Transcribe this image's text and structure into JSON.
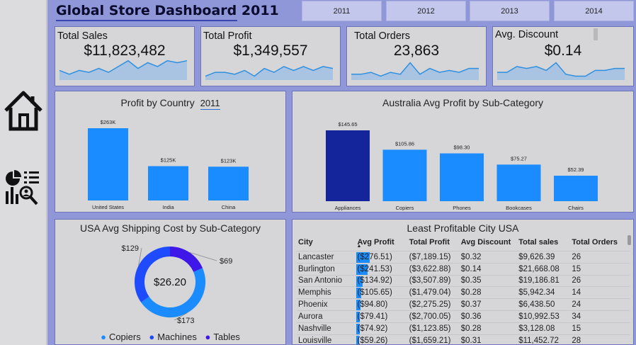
{
  "header": {
    "title": "Global Store Dashboard 2011",
    "years": [
      "2011",
      "2012",
      "2013",
      "2014"
    ]
  },
  "sidebar": {
    "items": [
      {
        "icon": "home-icon"
      },
      {
        "icon": "report-icon"
      }
    ]
  },
  "kpis": [
    {
      "label": "Total Sales",
      "value": "$11,823,482",
      "trend": [
        5,
        3,
        5,
        4,
        6,
        4,
        7,
        10,
        6,
        9,
        7,
        10,
        9,
        10
      ]
    },
    {
      "label": "Total Profit",
      "value": "$1,349,557",
      "trend": [
        2,
        4,
        4,
        3,
        5,
        2,
        6,
        4,
        7,
        5,
        7,
        5,
        7,
        6
      ]
    },
    {
      "label": "Total Orders",
      "value": "23,863",
      "trend": [
        3,
        3,
        4,
        2,
        4,
        3,
        9,
        3,
        6,
        4,
        5,
        4,
        6,
        6
      ]
    },
    {
      "label": "Avg. Discount",
      "value": "$0.14",
      "trend": [
        4,
        4,
        7,
        6,
        7,
        5,
        9,
        3,
        2,
        2,
        5,
        5,
        6,
        6
      ]
    }
  ],
  "colors": {
    "bar": "#1a8cff",
    "bar_highlight": "#14249a",
    "donut_copiers": "#1a8cff",
    "donut_machines": "#1f4bff",
    "donut_tables": "#3f17e8",
    "spark_fill": "#a9c4e2",
    "spark_line": "#2e8fe0"
  },
  "profit_by_country": {
    "title": "Profit by Country",
    "filter": "2011",
    "chart_data": {
      "type": "bar",
      "categories": [
        "United States",
        "India",
        "China"
      ],
      "values": [
        263,
        125,
        123
      ],
      "labels": [
        "$263K",
        "$125K",
        "$123K"
      ]
    }
  },
  "australia_profit": {
    "title": "Australia Avg Profit by Sub-Category",
    "chart_data": {
      "type": "bar",
      "categories": [
        "Appliances",
        "Copiers",
        "Phones",
        "Bookcases",
        "Chairs"
      ],
      "values": [
        145.65,
        105.86,
        98.3,
        75.27,
        52.39
      ],
      "labels": [
        "$145.65",
        "$105.86",
        "$98.30",
        "$75.27",
        "$52.39"
      ]
    }
  },
  "usa_shipping": {
    "title": "USA Avg Shipping Cost by Sub-Category",
    "center_value": "$26.20",
    "chart_data": {
      "type": "pie",
      "categories": [
        "Copiers",
        "Machines",
        "Tables"
      ],
      "values": [
        173,
        129,
        69
      ],
      "labels": [
        "$173",
        "$129",
        "$69"
      ]
    },
    "legend": [
      "Copiers",
      "Machines",
      "Tables"
    ]
  },
  "least_profitable": {
    "title": "Least Profitable City USA",
    "columns": [
      "City",
      "Avg Profit",
      "Total Profit",
      "Avg Discount",
      "Total sales",
      "Total Orders"
    ],
    "rows": [
      {
        "city": "Lancaster",
        "avg_profit": "($276.51)",
        "avg_profit_num": 276.51,
        "total_profit": "($7,189.15)",
        "avg_discount": "$0.32",
        "total_sales": "$9,626.39",
        "total_orders": "26"
      },
      {
        "city": "Burlington",
        "avg_profit": "($241.53)",
        "avg_profit_num": 241.53,
        "total_profit": "($3,622.88)",
        "avg_discount": "$0.14",
        "total_sales": "$21,668.08",
        "total_orders": "15"
      },
      {
        "city": "San Antonio",
        "avg_profit": "($134.92)",
        "avg_profit_num": 134.92,
        "total_profit": "($3,507.89)",
        "avg_discount": "$0.35",
        "total_sales": "$19,186.81",
        "total_orders": "26"
      },
      {
        "city": "Memphis",
        "avg_profit": "($105.65)",
        "avg_profit_num": 105.65,
        "total_profit": "($1,479.04)",
        "avg_discount": "$0.28",
        "total_sales": "$5,942.34",
        "total_orders": "14"
      },
      {
        "city": "Phoenix",
        "avg_profit": "($94.80)",
        "avg_profit_num": 94.8,
        "total_profit": "($2,275.25)",
        "avg_discount": "$0.37",
        "total_sales": "$6,438.50",
        "total_orders": "24"
      },
      {
        "city": "Aurora",
        "avg_profit": "($79.41)",
        "avg_profit_num": 79.41,
        "total_profit": "($2,700.05)",
        "avg_discount": "$0.36",
        "total_sales": "$10,992.53",
        "total_orders": "34"
      },
      {
        "city": "Nashville",
        "avg_profit": "($74.92)",
        "avg_profit_num": 74.92,
        "total_profit": "($1,123.85)",
        "avg_discount": "$0.28",
        "total_sales": "$3,128.08",
        "total_orders": "15"
      },
      {
        "city": "Louisville",
        "avg_profit": "($59.26)",
        "avg_profit_num": 59.26,
        "total_profit": "($1,659.21)",
        "avg_discount": "$0.31",
        "total_sales": "$11,452.72",
        "total_orders": "28"
      }
    ]
  }
}
